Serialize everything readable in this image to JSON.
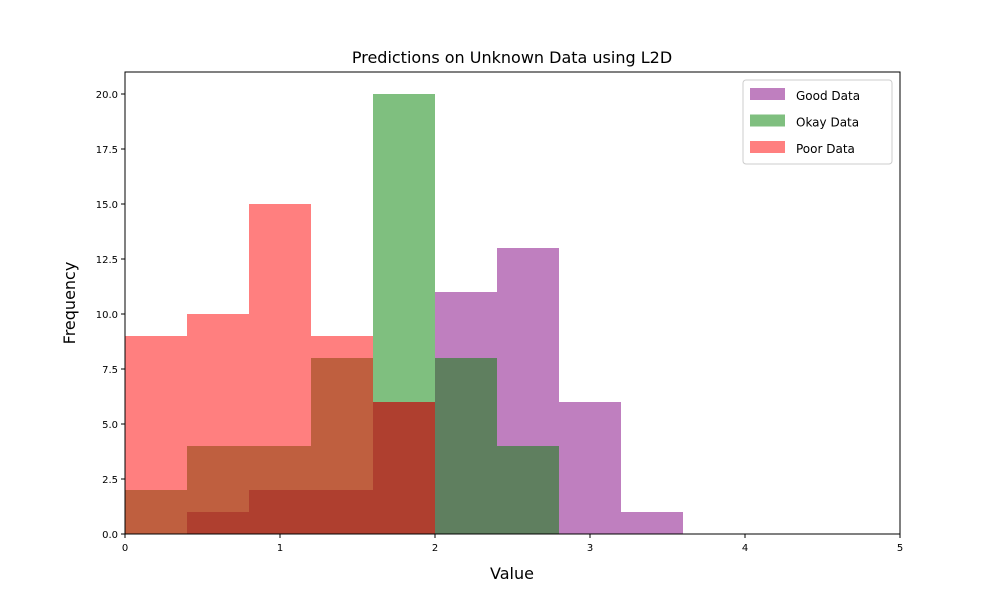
{
  "chart_data": {
    "type": "bar",
    "title": "Predictions on Unknown Data using L2D",
    "xlabel": "Value",
    "ylabel": "Frequency",
    "xlim": [
      0,
      5
    ],
    "ylim": [
      0,
      21
    ],
    "x_ticks": [
      "0",
      "1",
      "2",
      "3",
      "4",
      "5"
    ],
    "y_ticks": [
      "0.0",
      "2.5",
      "5.0",
      "7.5",
      "10.0",
      "12.5",
      "15.0",
      "17.5",
      "20.0"
    ],
    "bin_edges": [
      0,
      0.4,
      0.8,
      1.2,
      1.6,
      2.0,
      2.4,
      2.8,
      3.2,
      3.6
    ],
    "grid": false,
    "legend_position": "top-right",
    "series": [
      {
        "name": "Good Data",
        "color": "#800080",
        "opacity": 0.5,
        "values": [
          0,
          1,
          2,
          2,
          6,
          11,
          13,
          6,
          1
        ]
      },
      {
        "name": "Okay Data",
        "color": "#008000",
        "opacity": 0.5,
        "values": [
          2,
          4,
          4,
          8,
          20,
          8,
          4,
          0,
          0
        ]
      },
      {
        "name": "Poor Data",
        "color": "#ff0000",
        "opacity": 0.5,
        "values": [
          9,
          10,
          15,
          9,
          6,
          0,
          0,
          0,
          0
        ]
      }
    ]
  }
}
